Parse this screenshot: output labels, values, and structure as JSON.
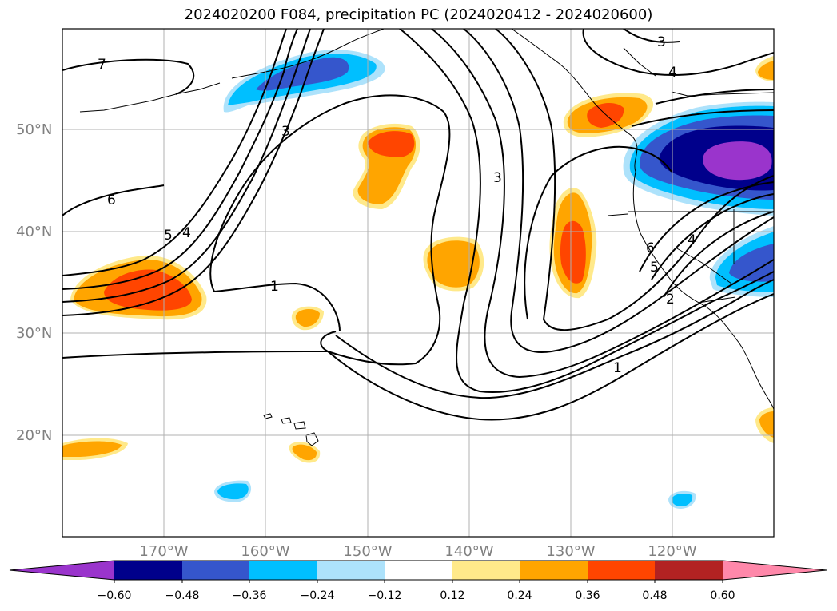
{
  "title": "2024020200 F084, precipitation PC (2024020412 - 2024020600)",
  "latitude_labels": [
    "50°N",
    "40°N",
    "30°N",
    "20°N"
  ],
  "longitude_labels": [
    "170°W",
    "160°W",
    "150°W",
    "140°W",
    "130°W",
    "120°W"
  ],
  "contour_labels": [
    "7",
    "3",
    "4",
    "3",
    "6",
    "5",
    "4",
    "1",
    "3",
    "6",
    "4",
    "5",
    "2",
    "1"
  ],
  "colorbar": {
    "ticks": [
      "−0.60",
      "−0.48",
      "−0.36",
      "−0.24",
      "−0.12",
      "0.12",
      "0.24",
      "0.36",
      "0.48",
      "0.60"
    ],
    "colors": [
      "#9a34cc",
      "#00008b",
      "#3556cc",
      "#00bfff",
      "#ade2fb",
      "#ffffff",
      "#ffe98a",
      "#ffa500",
      "#ff4500",
      "#b22222",
      "#ff88aa"
    ]
  }
}
